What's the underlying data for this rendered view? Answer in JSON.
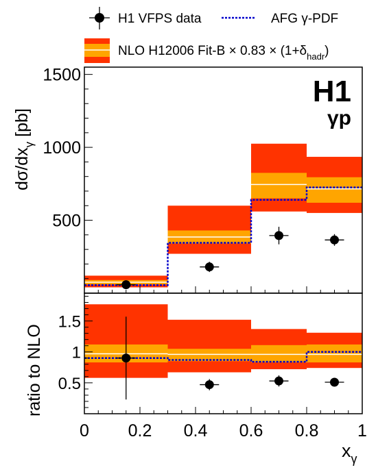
{
  "legend": {
    "data_label": "H1 VFPS data",
    "afg_label": "AFG γ-PDF",
    "nlo_label_main": "NLO H12006 Fit-B × 0.83 × (1+δ",
    "nlo_label_sub": "hadr",
    "nlo_label_close": ")"
  },
  "experiment": {
    "name": "H1",
    "process": "γp"
  },
  "colors": {
    "outer_band": "#ff3300",
    "inner_band": "#ffa500",
    "central_line": "#ffffff",
    "afg_line": "#0000cc",
    "data_marker": "#000000"
  },
  "chart_data": [
    {
      "id": "top",
      "type": "bar",
      "ylabel_main": "dσ/dx",
      "ylabel_sub": "γ",
      "ylabel_unit": " [pb]",
      "ylim": [
        0,
        1550
      ],
      "xlim": [
        0,
        1
      ],
      "yticks": [
        500,
        1000,
        1500
      ],
      "ytick_labels": [
        "500",
        "1000",
        "1500"
      ],
      "bins": [
        {
          "lo": 0.0,
          "hi": 0.3,
          "nlo_outer": [
            40,
            120
          ],
          "nlo_inner": [
            60,
            90
          ],
          "nlo_central": 75,
          "afg": 55
        },
        {
          "lo": 0.3,
          "hi": 0.6,
          "nlo_outer": [
            270,
            600
          ],
          "nlo_inner": [
            340,
            430
          ],
          "nlo_central": 385,
          "afg": 345
        },
        {
          "lo": 0.6,
          "hi": 0.8,
          "nlo_outer": [
            560,
            1025
          ],
          "nlo_inner": [
            650,
            825
          ],
          "nlo_central": 745,
          "afg": 640
        },
        {
          "lo": 0.8,
          "hi": 1.0,
          "nlo_outer": [
            550,
            935
          ],
          "nlo_inner": [
            620,
            795
          ],
          "nlo_central": 715,
          "afg": 725
        }
      ],
      "data_points": [
        {
          "x": 0.15,
          "y": 58,
          "err": 25
        },
        {
          "x": 0.45,
          "y": 180,
          "err": 35
        },
        {
          "x": 0.7,
          "y": 395,
          "err": 60
        },
        {
          "x": 0.9,
          "y": 365,
          "err": 40
        }
      ]
    },
    {
      "id": "ratio",
      "type": "bar",
      "ylabel_main": "ratio to NLO",
      "ylim": [
        0,
        1.95
      ],
      "xlim": [
        0,
        1
      ],
      "yticks": [
        0.5,
        1,
        1.5
      ],
      "ytick_labels": [
        "0.5",
        "1",
        "1.5"
      ],
      "xticks": [
        0,
        0.2,
        0.4,
        0.6,
        0.8,
        1
      ],
      "xtick_labels": [
        "0",
        "0.2",
        "0.4",
        "0.6",
        "0.8",
        "1"
      ],
      "xlabel_main": "x",
      "xlabel_sub": "γ",
      "bins": [
        {
          "lo": 0.0,
          "hi": 0.3,
          "nlo_outer": [
            0.58,
            1.77
          ],
          "nlo_inner": [
            0.83,
            1.12
          ],
          "nlo_central": 0.97,
          "afg": 0.9
        },
        {
          "lo": 0.3,
          "hi": 0.6,
          "nlo_outer": [
            0.67,
            1.52
          ],
          "nlo_inner": [
            0.85,
            1.05
          ],
          "nlo_central": 0.96,
          "afg": 0.87
        },
        {
          "lo": 0.6,
          "hi": 0.8,
          "nlo_outer": [
            0.72,
            1.37
          ],
          "nlo_inner": [
            0.83,
            1.11
          ],
          "nlo_central": 0.96,
          "afg": 0.84
        },
        {
          "lo": 0.8,
          "hi": 1.0,
          "nlo_outer": [
            0.74,
            1.31
          ],
          "nlo_inner": [
            0.83,
            1.12
          ],
          "nlo_central": 0.96,
          "afg": 1.0
        }
      ],
      "data_points": [
        {
          "x": 0.15,
          "y": 0.9,
          "err": 0.67
        },
        {
          "x": 0.45,
          "y": 0.47,
          "err": 0.09
        },
        {
          "x": 0.7,
          "y": 0.53,
          "err": 0.09
        },
        {
          "x": 0.9,
          "y": 0.51,
          "err": 0.05
        }
      ]
    }
  ]
}
